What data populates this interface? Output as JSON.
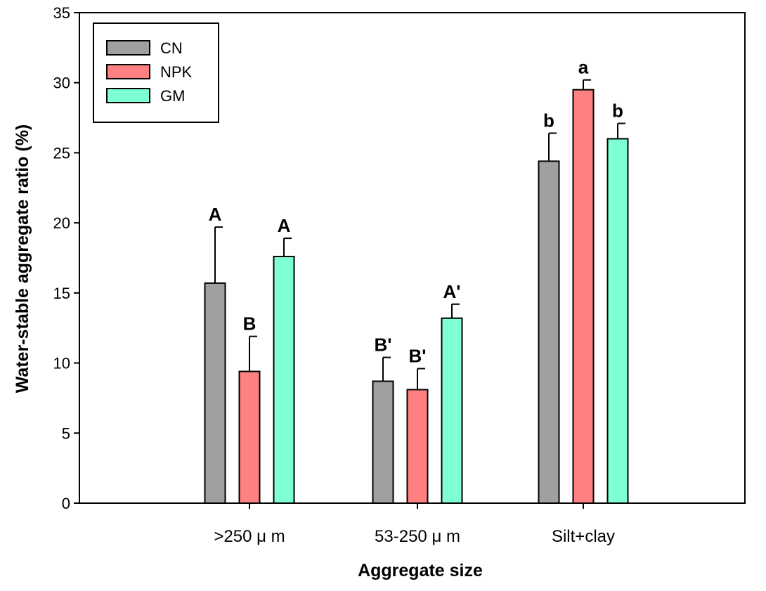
{
  "chart_data": {
    "type": "bar",
    "title": "",
    "xlabel": "Aggregate size",
    "ylabel": "Water-stable aggregate ratio (%)",
    "ylim": [
      0,
      35
    ],
    "yticks": [
      0,
      5,
      10,
      15,
      20,
      25,
      30,
      35
    ],
    "ytick_labels": [
      "0",
      "5",
      "10",
      "15",
      "20",
      "25",
      "30",
      "35"
    ],
    "categories": [
      ">250 μ m",
      "53-250 μ m",
      "Silt+clay"
    ],
    "legend_position": "top-left",
    "grid": false,
    "series": [
      {
        "name": "CN",
        "color": "#a0a0a0",
        "values": [
          15.7,
          8.7,
          24.4
        ],
        "errors": [
          4.0,
          1.7,
          2.0
        ],
        "letters": [
          "A",
          "B'",
          "b"
        ]
      },
      {
        "name": "NPK",
        "color": "#ff8080",
        "values": [
          9.4,
          8.1,
          29.5
        ],
        "errors": [
          2.5,
          1.5,
          0.7
        ],
        "letters": [
          "B",
          "B'",
          "a"
        ]
      },
      {
        "name": "GM",
        "color": "#7fffd4",
        "values": [
          17.6,
          13.2,
          26.0
        ],
        "errors": [
          1.3,
          1.0,
          1.1
        ],
        "letters": [
          "A",
          "A'",
          "b"
        ]
      }
    ]
  }
}
